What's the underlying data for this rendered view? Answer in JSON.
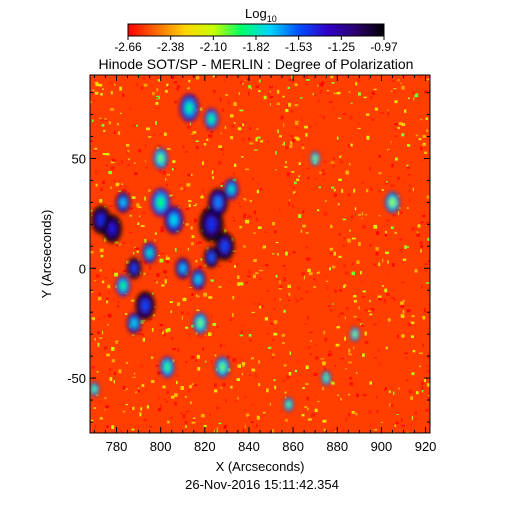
{
  "chart_data": {
    "type": "heatmap",
    "title": "Hinode SOT/SP - MERLIN : Degree of Polarization",
    "xlabel": "X (Arcseconds)",
    "ylabel": "Y (Arcseconds)",
    "footer": "26-Nov-2016 15:11:42.354",
    "xlim": [
      768,
      922
    ],
    "ylim": [
      -75,
      88
    ],
    "x_ticks": [
      780,
      800,
      820,
      840,
      860,
      880,
      900,
      920
    ],
    "y_ticks": [
      -50,
      0,
      50
    ],
    "colorbar": {
      "label": "Log",
      "label_subscript": "10",
      "range": [
        -2.66,
        -0.97
      ],
      "ticks": [
        "-2.66",
        "-2.38",
        "-2.10",
        "-1.82",
        "-1.53",
        "-1.25",
        "-0.97"
      ],
      "colors": [
        "#ff0000",
        "#ff6a00",
        "#ffd400",
        "#c8ff00",
        "#00ff6a",
        "#00d4ff",
        "#0050ff",
        "#3000c8",
        "#2a0070",
        "#000000"
      ]
    },
    "background_level": -2.55,
    "features": [
      {
        "x": 773,
        "y": 22,
        "radius": 4,
        "level": -1.45
      },
      {
        "x": 778,
        "y": 18,
        "radius": 4,
        "level": -1.4
      },
      {
        "x": 783,
        "y": 30,
        "radius": 3,
        "level": -1.7
      },
      {
        "x": 800,
        "y": 30,
        "radius": 4,
        "level": -1.9
      },
      {
        "x": 806,
        "y": 22,
        "radius": 4,
        "level": -1.75
      },
      {
        "x": 795,
        "y": 7,
        "radius": 3,
        "level": -1.8
      },
      {
        "x": 788,
        "y": 0,
        "radius": 3,
        "level": -1.5
      },
      {
        "x": 793,
        "y": -17,
        "radius": 4,
        "level": -1.5
      },
      {
        "x": 788,
        "y": -25,
        "radius": 3,
        "level": -1.75
      },
      {
        "x": 783,
        "y": -8,
        "radius": 3,
        "level": -1.9
      },
      {
        "x": 810,
        "y": 0,
        "radius": 3,
        "level": -1.7
      },
      {
        "x": 817,
        "y": -5,
        "radius": 3,
        "level": -1.75
      },
      {
        "x": 823,
        "y": 20,
        "radius": 5,
        "level": -1.45
      },
      {
        "x": 826,
        "y": 30,
        "radius": 4,
        "level": -1.6
      },
      {
        "x": 829,
        "y": 10,
        "radius": 4,
        "level": -1.5
      },
      {
        "x": 823,
        "y": 5,
        "radius": 3,
        "level": -1.55
      },
      {
        "x": 832,
        "y": 36,
        "radius": 3,
        "level": -1.8
      },
      {
        "x": 813,
        "y": 73,
        "radius": 4,
        "level": -1.85
      },
      {
        "x": 823,
        "y": 68,
        "radius": 3,
        "level": -1.9
      },
      {
        "x": 800,
        "y": 50,
        "radius": 3,
        "level": -2.0
      },
      {
        "x": 818,
        "y": -25,
        "radius": 3,
        "level": -2.0
      },
      {
        "x": 803,
        "y": -45,
        "radius": 3,
        "level": -1.95
      },
      {
        "x": 828,
        "y": -45,
        "radius": 3,
        "level": -2.0
      },
      {
        "x": 875,
        "y": -50,
        "radius": 2,
        "level": -2.0
      },
      {
        "x": 858,
        "y": -62,
        "radius": 2,
        "level": -2.0
      },
      {
        "x": 888,
        "y": -30,
        "radius": 2,
        "level": -2.05
      },
      {
        "x": 870,
        "y": 50,
        "radius": 2,
        "level": -2.05
      },
      {
        "x": 905,
        "y": 30,
        "radius": 3,
        "level": -2.05
      },
      {
        "x": 770,
        "y": -55,
        "radius": 2,
        "level": -2.0
      }
    ]
  }
}
